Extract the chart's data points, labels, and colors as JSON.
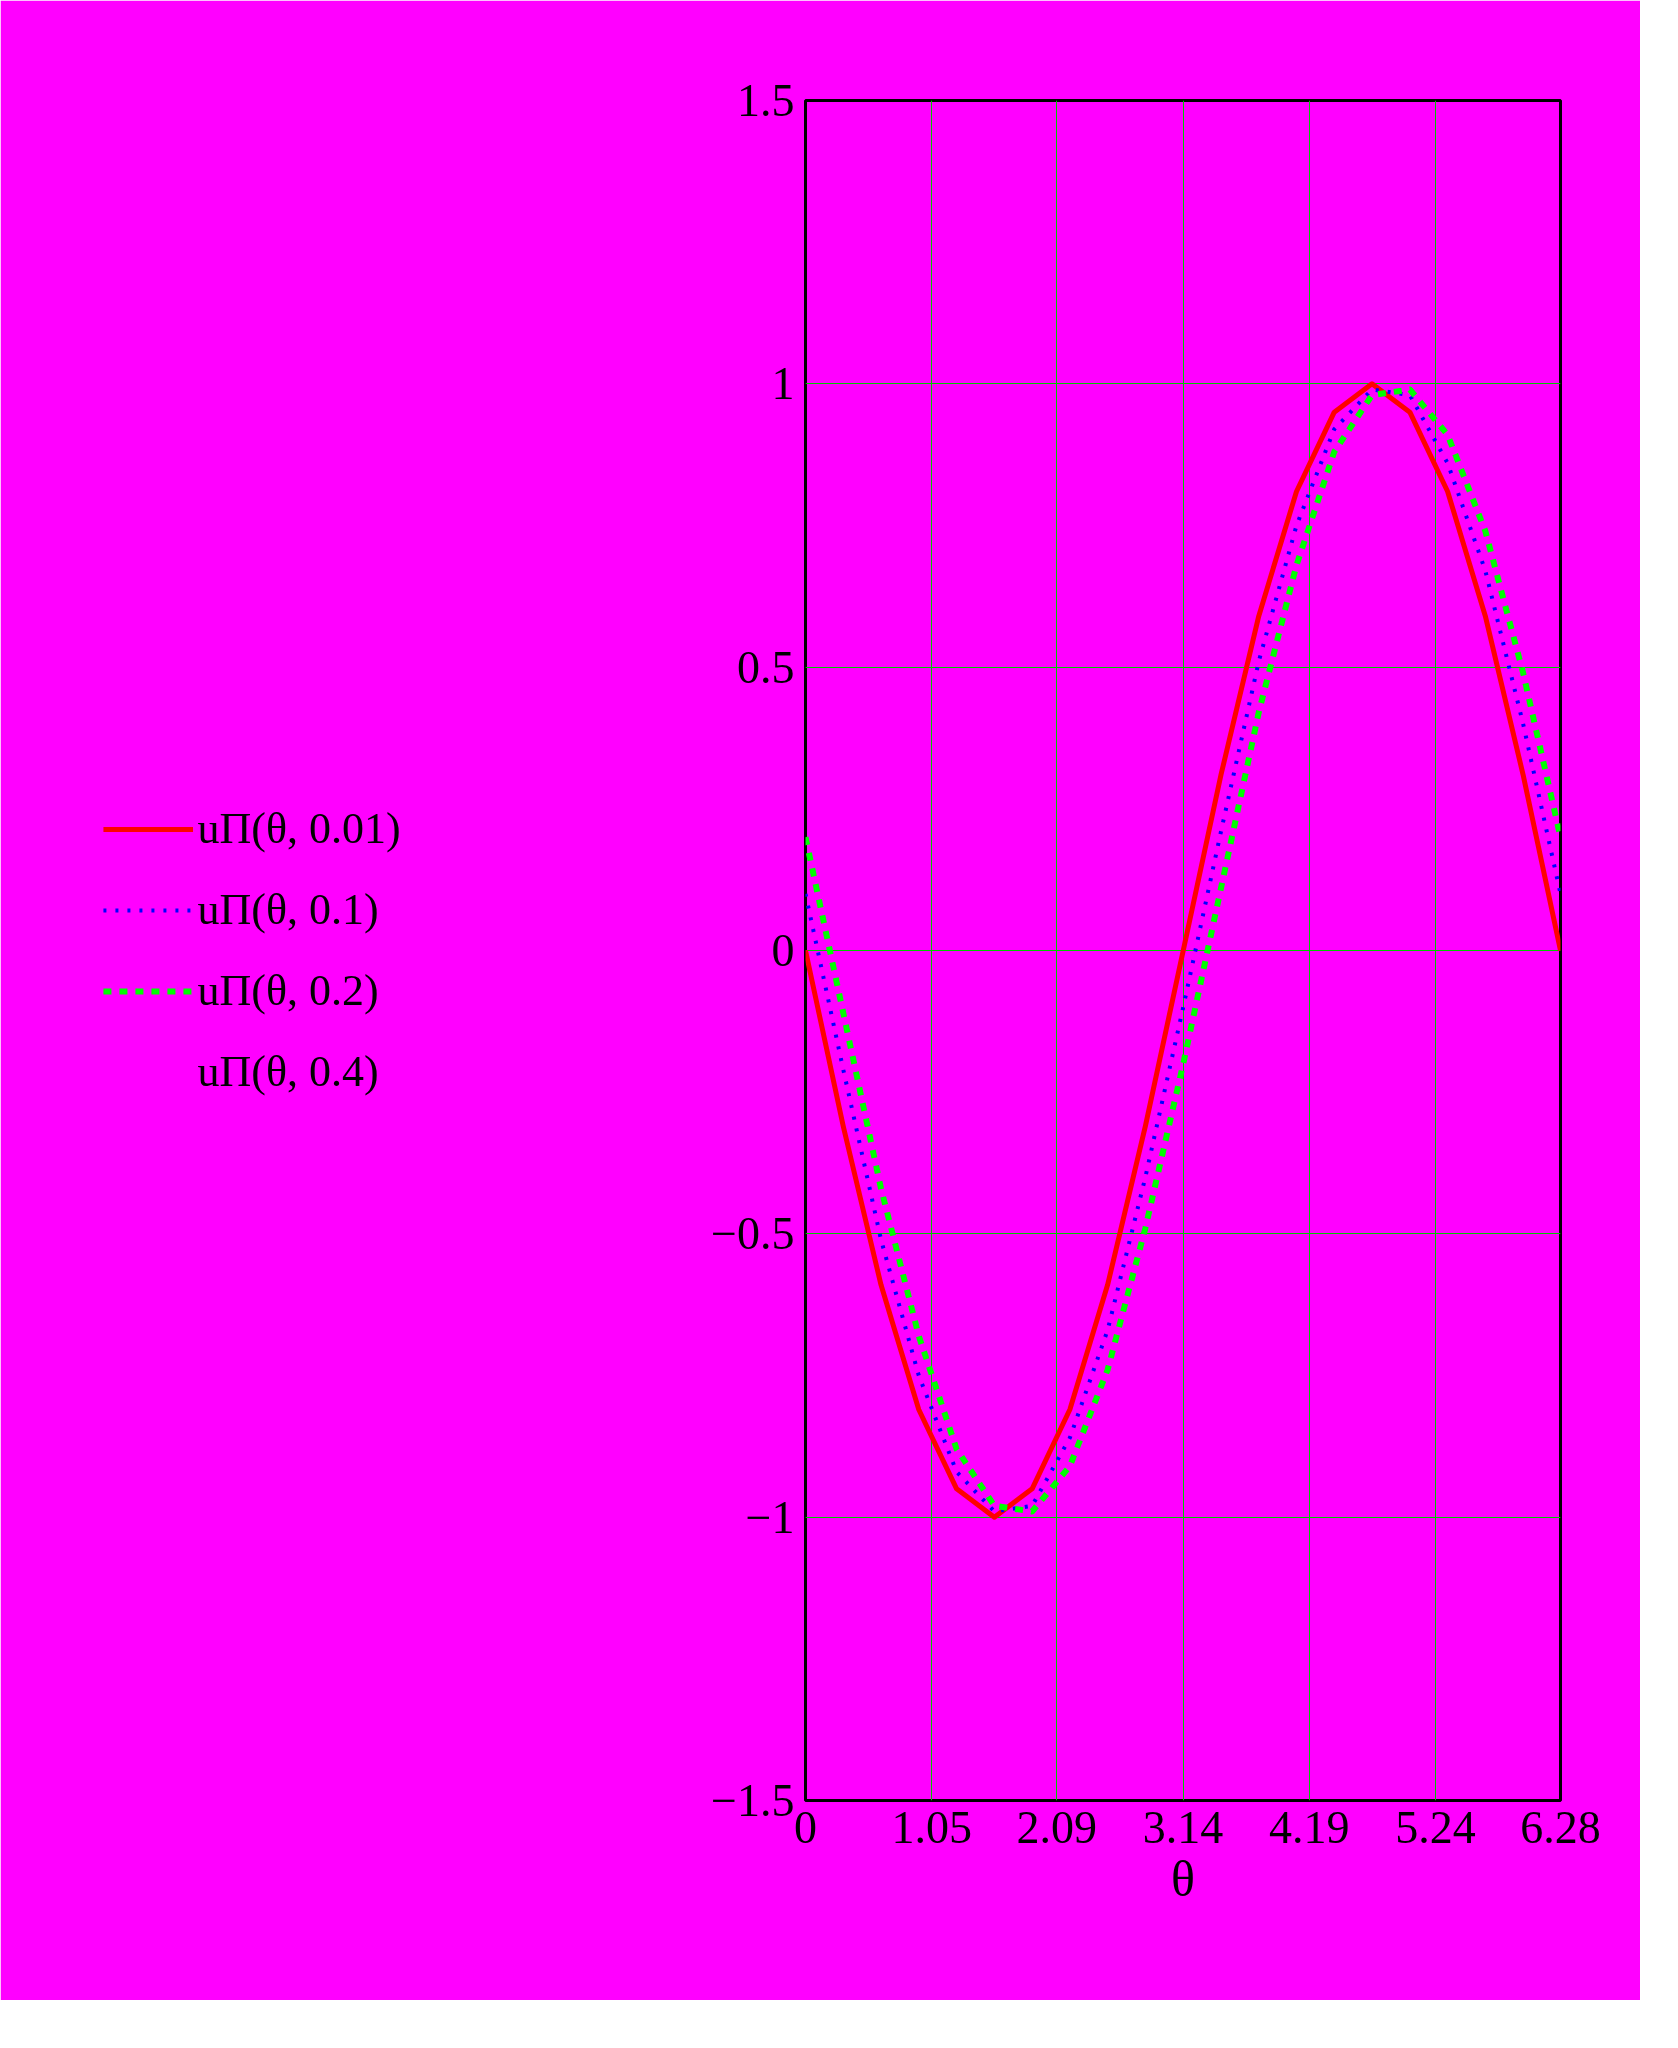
{
  "chart_data": {
    "type": "line",
    "xlabel": "θ",
    "x": [
      0,
      0.314,
      0.628,
      0.942,
      1.257,
      1.571,
      1.885,
      2.199,
      2.513,
      2.827,
      3.142,
      3.456,
      3.77,
      4.084,
      4.398,
      4.712,
      5.027,
      5.341,
      5.655,
      5.969,
      6.28
    ],
    "series": [
      {
        "name": "uП(θ, 0.01)",
        "color": "#ff0000",
        "line_style": "solid",
        "values": [
          0,
          -0.31,
          -0.59,
          -0.81,
          -0.95,
          -1,
          -0.95,
          -0.81,
          -0.59,
          -0.31,
          0,
          0.31,
          0.59,
          0.81,
          0.95,
          1,
          0.95,
          0.81,
          0.59,
          0.31,
          0
        ]
      },
      {
        "name": "uП(θ, 0.1)",
        "color": "#0000ff",
        "line_style": "dotted",
        "values": [
          0.1,
          -0.21,
          -0.51,
          -0.75,
          -0.92,
          -0.99,
          -0.98,
          -0.86,
          -0.67,
          -0.4,
          -0.1,
          0.21,
          0.51,
          0.75,
          0.92,
          0.99,
          0.98,
          0.86,
          0.67,
          0.4,
          0.1
        ]
      },
      {
        "name": "uП(θ, 0.2)",
        "color": "#00ff00",
        "line_style": "dashed",
        "values": [
          0.2,
          -0.11,
          -0.42,
          -0.68,
          -0.88,
          -0.98,
          -0.99,
          -0.91,
          -0.74,
          -0.49,
          -0.2,
          0.11,
          0.42,
          0.68,
          0.88,
          0.98,
          0.99,
          0.91,
          0.74,
          0.49,
          0.2
        ]
      }
    ],
    "annotations": [
      "uП(θ, 0.4)"
    ],
    "xlim": [
      0,
      6.28
    ],
    "ylim": [
      -1.5,
      1.5
    ],
    "xticks": [
      0,
      1.05,
      2.09,
      3.14,
      4.19,
      5.24,
      6.28
    ],
    "yticks": [
      -1.5,
      -1,
      -0.5,
      0,
      0.5,
      1,
      1.5
    ],
    "grid": true,
    "legend": "left"
  }
}
